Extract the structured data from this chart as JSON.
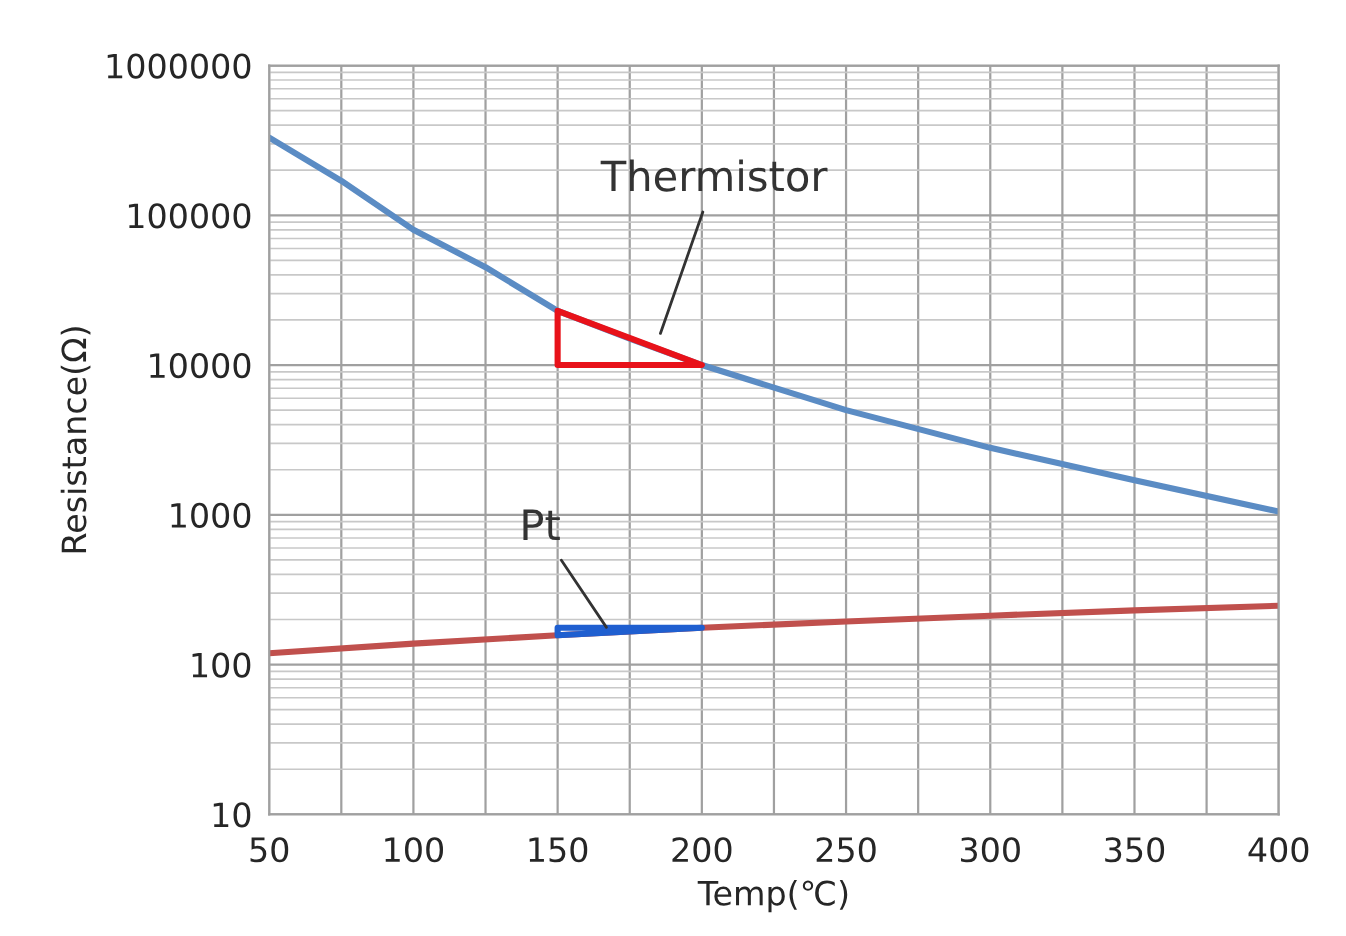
{
  "chart_data": {
    "type": "line",
    "xlabel": "Temp(℃)",
    "ylabel": "Resistance(Ω)",
    "log": "y",
    "xlim": [
      50,
      400
    ],
    "ylim": [
      10,
      1000000
    ],
    "xticks": [
      50,
      {
        "value": 75,
        "label": null
      },
      100,
      {
        "value": 125,
        "label": null
      },
      150,
      {
        "value": 175,
        "label": null
      },
      200,
      {
        "value": 225,
        "label": null
      },
      250,
      {
        "value": 275,
        "label": null
      },
      300,
      {
        "value": 325,
        "label": null
      },
      350,
      {
        "value": 375,
        "label": null
      },
      400
    ],
    "yticks": [
      10,
      100,
      1000,
      10000,
      100000,
      1000000
    ],
    "grid": true,
    "series": [
      {
        "color": "#5b8cc4",
        "x": [
          50,
          75,
          100,
          125,
          150,
          175,
          200,
          250,
          300,
          350,
          400
        ],
        "values": [
          330000,
          170000,
          80000,
          45000,
          23000,
          15000,
          10000,
          5000,
          2800,
          1700,
          1050
        ]
      },
      {
        "color": "#c0504d",
        "x": [
          50,
          100,
          150,
          200,
          250,
          300,
          350,
          400
        ],
        "values": [
          119,
          138,
          157,
          176,
          194,
          212,
          230,
          247
        ]
      }
    ],
    "annotations": [
      {
        "text": "Thermistor",
        "x": 185,
        "y": 15000
      },
      {
        "text": "Pt",
        "x": 168,
        "y": 165
      }
    ]
  }
}
